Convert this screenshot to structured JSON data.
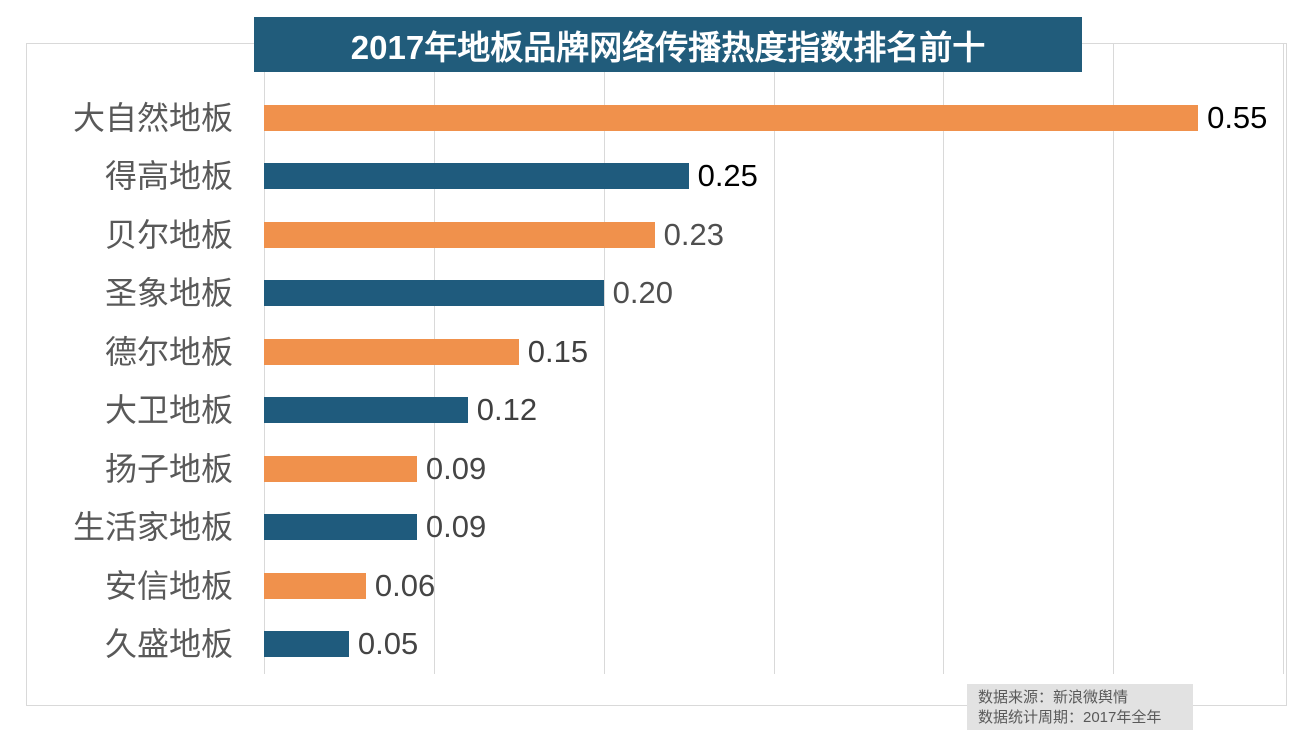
{
  "title": "2017年地板品牌网络传播热度指数排名前十",
  "chart_data": {
    "type": "bar",
    "orientation": "horizontal",
    "title": "2017年地板品牌网络传播热度指数排名前十",
    "categories": [
      "大自然地板",
      "得高地板",
      "贝尔地板",
      "圣象地板",
      "德尔地板",
      "大卫地板",
      "扬子地板",
      "生活家地板",
      "安信地板",
      "久盛地板"
    ],
    "values": [
      0.55,
      0.25,
      0.23,
      0.2,
      0.15,
      0.12,
      0.09,
      0.09,
      0.06,
      0.05
    ],
    "value_labels": [
      "0.55",
      "0.25",
      "0.23",
      "0.20",
      "0.15",
      "0.12",
      "0.09",
      "0.09",
      "0.06",
      "0.05"
    ],
    "xlim": [
      0,
      0.6
    ],
    "grid_interval": 0.1,
    "grid": "vertical-lines-only",
    "legend": "none",
    "x_axis_tick_labels": "none",
    "bar_color_pattern": [
      "#F0914C",
      "#1F5B7D"
    ],
    "value_label_colors": [
      "#000000",
      "#000000",
      "#4f4f4f",
      "#4f4f4f",
      "#404040",
      "#404040",
      "#454545",
      "#454545",
      "#454545",
      "#454545"
    ]
  },
  "colors": {
    "bar_orange": "#F0914C",
    "bar_blue": "#1F5B7D",
    "title_bg": "#215C7B",
    "title_text": "#FFFFFF",
    "gridline": "#D9D9D9",
    "frame_border": "#D9D9D9",
    "category_label": "#595959",
    "footer_bg": "#E2E2E2",
    "footer_text": "#595959"
  },
  "footer": {
    "source": "数据来源：新浪微舆情",
    "period": "数据统计周期：2017年全年"
  }
}
